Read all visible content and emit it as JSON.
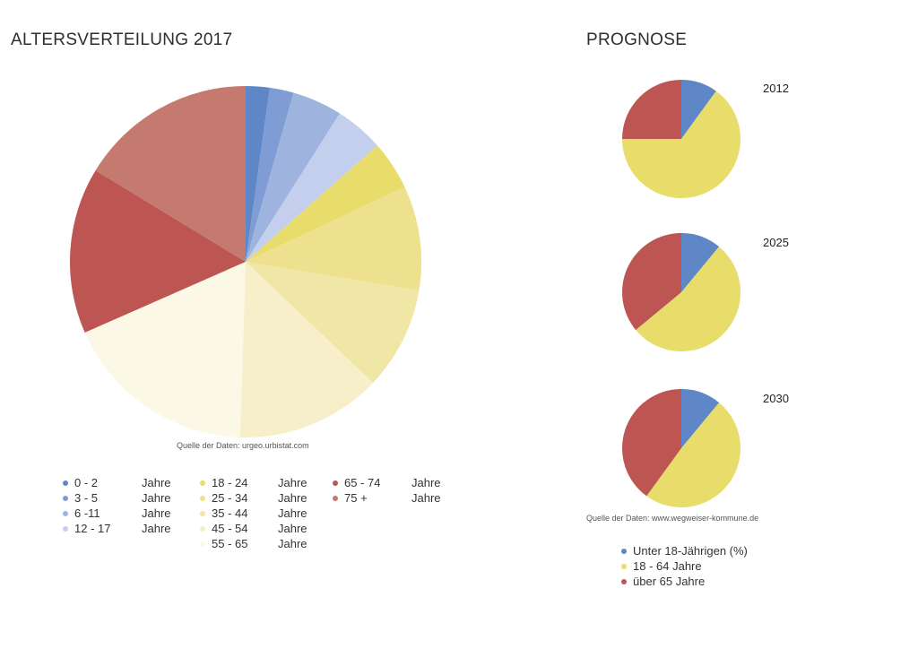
{
  "titles": {
    "main": "ALTERSVERTEILUNG 2017",
    "prognose": "PROGNOSE"
  },
  "sources": {
    "main": "Quelle der Daten: urgeo.urbistat.com",
    "prognose": "Quelle der Daten: www.wegweiser-kommune.de"
  },
  "legend_main": {
    "col1": [
      {
        "range": "0 - 2",
        "unit": "Jahre",
        "color": "#5f87c7"
      },
      {
        "range": "3 - 5",
        "unit": "Jahre",
        "color": "#7f9dd4"
      },
      {
        "range": "6 -11",
        "unit": "Jahre",
        "color": "#9eb4de"
      },
      {
        "range": "12 - 17",
        "unit": "Jahre",
        "color": "#c3cfec"
      }
    ],
    "col2": [
      {
        "range": "18 - 24",
        "unit": "Jahre",
        "color": "#e8dc6a"
      },
      {
        "range": "25 - 34",
        "unit": "Jahre",
        "color": "#ede08e"
      },
      {
        "range": "35 - 44",
        "unit": "Jahre",
        "color": "#f0e7a7"
      },
      {
        "range": "45 - 54",
        "unit": "Jahre",
        "color": "#f6efc9"
      },
      {
        "range": "55 - 65",
        "unit": "Jahre",
        "color": "#fbf8e6"
      }
    ],
    "col3": [
      {
        "range": "65 - 74",
        "unit": "Jahre",
        "color": "#bd5553"
      },
      {
        "range": "75    +",
        "unit": "Jahre",
        "color": "#c47a6e"
      }
    ]
  },
  "legend_prognose": [
    {
      "label": "Unter 18-Jährigen (%)",
      "color": "#5f87c7"
    },
    {
      "label": "18 - 64 Jahre",
      "color": "#e8dc6a"
    },
    {
      "label": "über 65 Jahre",
      "color": "#bd5553"
    }
  ],
  "chart_data": [
    {
      "type": "pie",
      "title": "ALTERSVERTEILUNG 2017",
      "start_angle_deg": 0,
      "direction": "clockwise",
      "slices": [
        {
          "label": "0 - 2 Jahre",
          "value": 2.2,
          "color": "#5f87c7"
        },
        {
          "label": "3 - 5 Jahre",
          "value": 2.2,
          "color": "#7f9dd4"
        },
        {
          "label": "6 -11 Jahre",
          "value": 4.6,
          "color": "#9eb4de"
        },
        {
          "label": "12 - 17 Jahre",
          "value": 4.5,
          "color": "#c3cfec"
        },
        {
          "label": "18 - 24 Jahre",
          "value": 4.5,
          "color": "#e8dc6a"
        },
        {
          "label": "25 - 34 Jahre",
          "value": 9.6,
          "color": "#ede08e"
        },
        {
          "label": "35 - 44 Jahre",
          "value": 9.5,
          "color": "#f0e7a7"
        },
        {
          "label": "45 - 54 Jahre",
          "value": 13.4,
          "color": "#f6efc9"
        },
        {
          "label": "55 - 65 Jahre",
          "value": 17.9,
          "color": "#fbf8e6"
        },
        {
          "label": "65 - 74 Jahre",
          "value": 15.3,
          "color": "#bd5553"
        },
        {
          "label": "75 + Jahre",
          "value": 16.3,
          "color": "#c47a6e"
        }
      ]
    },
    {
      "type": "pie",
      "title": "2012",
      "slices": [
        {
          "label": "Unter 18-Jährigen (%)",
          "value": 10,
          "color": "#5f87c7"
        },
        {
          "label": "18 - 64 Jahre",
          "value": 65,
          "color": "#e8dc6a"
        },
        {
          "label": "über 65 Jahre",
          "value": 25,
          "color": "#bd5553"
        }
      ]
    },
    {
      "type": "pie",
      "title": "2025",
      "slices": [
        {
          "label": "Unter 18-Jährigen (%)",
          "value": 11,
          "color": "#5f87c7"
        },
        {
          "label": "18 - 64 Jahre",
          "value": 53,
          "color": "#e8dc6a"
        },
        {
          "label": "über 65 Jahre",
          "value": 36,
          "color": "#bd5553"
        }
      ]
    },
    {
      "type": "pie",
      "title": "2030",
      "slices": [
        {
          "label": "Unter 18-Jährigen (%)",
          "value": 11,
          "color": "#5f87c7"
        },
        {
          "label": "18 - 64 Jahre",
          "value": 49,
          "color": "#e8dc6a"
        },
        {
          "label": "über 65 Jahre",
          "value": 40,
          "color": "#bd5553"
        }
      ]
    }
  ]
}
